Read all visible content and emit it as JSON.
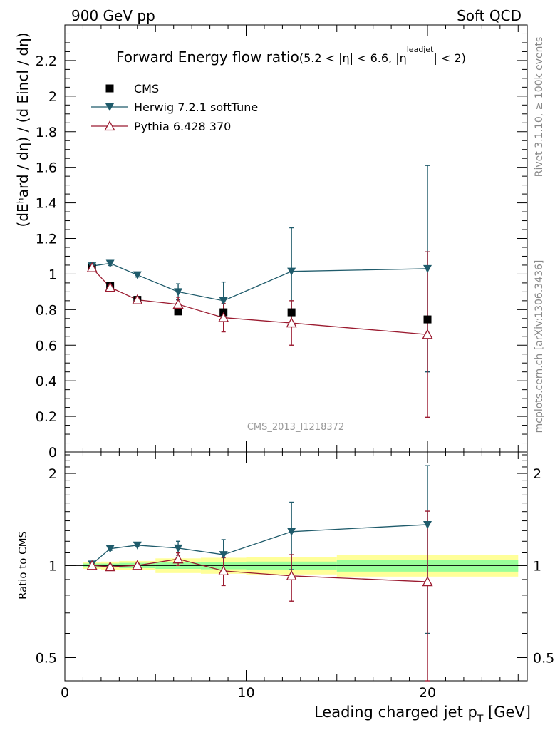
{
  "header": {
    "left": "900 GeV pp",
    "right": "Soft QCD"
  },
  "side": {
    "rivet": "Rivet 3.1.10, ≥ 100k events",
    "mcplots": "mcplots.cern.ch [arXiv:1306.3436]"
  },
  "chart_data": {
    "type": "line",
    "title_main": "Forward Energy flow ratio",
    "title_sub": "(5.2 < |η| < 6.6, |η",
    "title_sup": "leadjet",
    "title_tail": "| < 2)",
    "watermark": "CMS_2013_I1218372",
    "ylabel": "(dEʰard / dη) / (d Eincl / dη)",
    "ratio_ylabel": "Ratio to CMS",
    "xlabel": "Leading charged jet p",
    "xlabel_sub": "T",
    "xlabel_unit": " [GeV]",
    "xlim": [
      0,
      25.5
    ],
    "ylim": [
      0,
      2.4
    ],
    "ratio_ylim": [
      0.42,
      2.35
    ],
    "x_ticks": [
      0,
      10,
      20
    ],
    "x_tick_labels": [
      "0",
      "10",
      "20"
    ],
    "y_ticks": [
      0,
      0.2,
      0.4,
      0.6,
      0.8,
      1,
      1.2,
      1.4,
      1.6,
      1.8,
      2,
      2.2
    ],
    "y_tick_labels": [
      "0",
      "0.2",
      "0.4",
      "0.6",
      "0.8",
      "1",
      "1.2",
      "1.4",
      "1.6",
      "1.8",
      "2",
      "2.2"
    ],
    "ratio_ticks": [
      0.5,
      1,
      2
    ],
    "ratio_tick_labels": [
      "0.5",
      "1",
      "2"
    ],
    "series": [
      {
        "name": "CMS",
        "color": "#000000",
        "marker": "square",
        "x": [
          1.5,
          2.5,
          4.0,
          6.25,
          8.75,
          12.5,
          20.0
        ],
        "y": [
          1.035,
          0.935,
          0.855,
          0.79,
          0.785,
          0.785,
          0.745
        ]
      },
      {
        "name": "Herwig 7.2.1 softTune",
        "color": "#1f5b6b",
        "marker": "triangle-down",
        "x": [
          1.5,
          2.5,
          4.0,
          6.25,
          8.75,
          12.5,
          20.0
        ],
        "y": [
          1.045,
          1.06,
          0.995,
          0.9,
          0.85,
          1.015,
          1.03
        ],
        "err": [
          0.018,
          0.012,
          0.012,
          0.045,
          0.105,
          0.245,
          0.58
        ],
        "ratio": [
          1.01,
          1.135,
          1.165,
          1.14,
          1.085,
          1.29,
          1.36
        ],
        "ratio_err": [
          0.02,
          0.015,
          0.015,
          0.06,
          0.13,
          0.32,
          0.76
        ]
      },
      {
        "name": "Pythia 6.428 370",
        "color": "#9b1b30",
        "marker": "triangle-up-open",
        "x": [
          1.5,
          2.5,
          4.0,
          6.25,
          8.75,
          12.5,
          20.0
        ],
        "y": [
          1.035,
          0.925,
          0.855,
          0.83,
          0.755,
          0.725,
          0.66
        ],
        "err": [
          0.015,
          0.012,
          0.012,
          0.04,
          0.08,
          0.125,
          0.465
        ],
        "ratio": [
          1.0,
          0.99,
          1.0,
          1.05,
          0.96,
          0.925,
          0.885
        ],
        "ratio_err": [
          0.015,
          0.015,
          0.015,
          0.05,
          0.1,
          0.16,
          0.62
        ]
      }
    ],
    "bands": {
      "yellow": [
        {
          "x0": 1.0,
          "x1": 2.0,
          "lo": 0.975,
          "hi": 1.025
        },
        {
          "x0": 2.0,
          "x1": 3.0,
          "lo": 0.97,
          "hi": 1.03
        },
        {
          "x0": 3.0,
          "x1": 5.0,
          "lo": 0.965,
          "hi": 1.035
        },
        {
          "x0": 5.0,
          "x1": 7.5,
          "lo": 0.945,
          "hi": 1.055
        },
        {
          "x0": 7.5,
          "x1": 10.0,
          "lo": 0.94,
          "hi": 1.06
        },
        {
          "x0": 10.0,
          "x1": 15.0,
          "lo": 0.935,
          "hi": 1.065
        },
        {
          "x0": 15.0,
          "x1": 25.0,
          "lo": 0.92,
          "hi": 1.08
        }
      ],
      "green": [
        {
          "x0": 1.0,
          "x1": 2.0,
          "lo": 0.985,
          "hi": 1.015
        },
        {
          "x0": 2.0,
          "x1": 3.0,
          "lo": 0.985,
          "hi": 1.015
        },
        {
          "x0": 3.0,
          "x1": 5.0,
          "lo": 0.98,
          "hi": 1.02
        },
        {
          "x0": 5.0,
          "x1": 7.5,
          "lo": 0.975,
          "hi": 1.025
        },
        {
          "x0": 7.5,
          "x1": 10.0,
          "lo": 0.972,
          "hi": 1.028
        },
        {
          "x0": 10.0,
          "x1": 15.0,
          "lo": 0.97,
          "hi": 1.03
        },
        {
          "x0": 15.0,
          "x1": 25.0,
          "lo": 0.955,
          "hi": 1.045
        }
      ]
    }
  }
}
